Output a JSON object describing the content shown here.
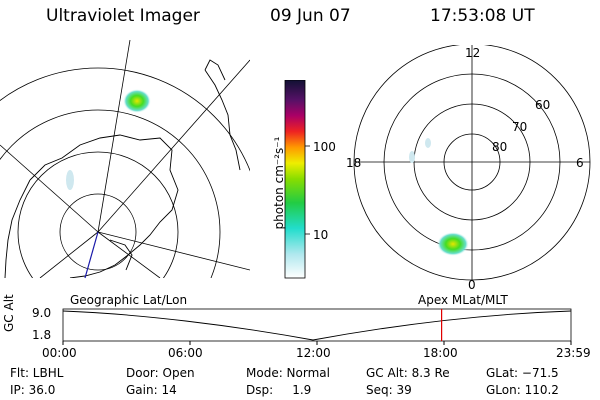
{
  "header": {
    "instrument": "Ultraviolet Imager",
    "date": "09 Jun 07",
    "time": "17:53:08 UT"
  },
  "colorbar": {
    "unit_label": "photon cm⁻²s⁻¹",
    "tick_100": "100",
    "tick_10": "10"
  },
  "polar_plot": {
    "mlt_12": "12",
    "mlt_18": "18",
    "mlt_6": "6",
    "mlt_0": "0",
    "lat_60": "60",
    "lat_70": "70",
    "lat_80": "80"
  },
  "timeline": {
    "left_caption": "Geographic Lat/Lon",
    "right_caption": "Apex  MLat/MLT",
    "axis_name": "GC Alt",
    "y_max": "9.0",
    "y_min": "1.8",
    "ticks": [
      "00:00",
      "06:00",
      "12:00",
      "18:00",
      "23:59"
    ],
    "current_time_fraction": 0.7453,
    "marker_color": "#e00000"
  },
  "status": {
    "filter": "Flt: LBHL",
    "door": "Door: Open",
    "mode": "Mode: Normal",
    "gc_alt": "GC Alt: 8.3 Re",
    "glat": "GLat: −71.5",
    "ip": "IP: 36.0",
    "gain": "Gain: 14",
    "dsp": "Dsp:     1.9",
    "seq": "Seq: 39",
    "glon": "GLon: 110.2"
  }
}
